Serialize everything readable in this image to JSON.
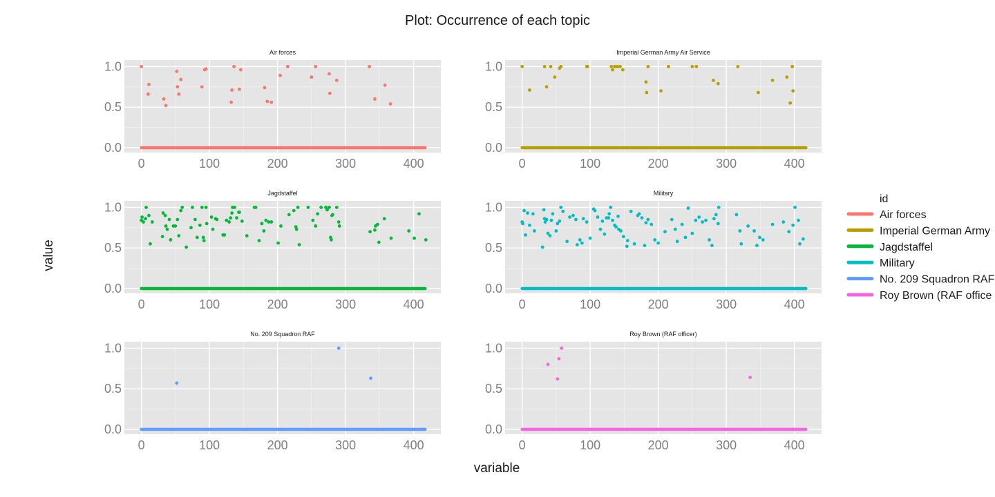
{
  "chart_data": {
    "type": "scatter",
    "title": "Plot: Occurrence of each topic",
    "xlabel": "variable",
    "ylabel": "value",
    "xlim": [
      -25,
      440
    ],
    "ylim": [
      -0.06,
      1.08
    ],
    "xticks": [
      0,
      100,
      200,
      300,
      400
    ],
    "yticks": [
      0.0,
      0.5,
      1.0
    ],
    "ytick_labels": [
      "0.0",
      "0.5",
      "1.0"
    ],
    "grid": true,
    "legend": {
      "title": "id",
      "position": "right"
    },
    "panels": [
      {
        "name": "Air forces",
        "color": "#F8766D",
        "points": [
          [
            0,
            1.0
          ],
          [
            10,
            0.66
          ],
          [
            11,
            0.78
          ],
          [
            33,
            0.6
          ],
          [
            36,
            0.52
          ],
          [
            52,
            0.94
          ],
          [
            53,
            0.75
          ],
          [
            55,
            0.66
          ],
          [
            58,
            0.84
          ],
          [
            89,
            0.75
          ],
          [
            93,
            0.96
          ],
          [
            95,
            0.97
          ],
          [
            132,
            0.56
          ],
          [
            133,
            0.71
          ],
          [
            136,
            1.0
          ],
          [
            144,
            0.72
          ],
          [
            146,
            0.96
          ],
          [
            181,
            0.74
          ],
          [
            185,
            0.57
          ],
          [
            191,
            0.56
          ],
          [
            204,
            0.89
          ],
          [
            215,
            1.0
          ],
          [
            250,
            0.87
          ],
          [
            256,
            1.0
          ],
          [
            276,
            0.91
          ],
          [
            277,
            0.67
          ],
          [
            287,
            0.83
          ],
          [
            335,
            1.0
          ],
          [
            343,
            0.6
          ],
          [
            358,
            0.77
          ],
          [
            366,
            0.54
          ]
        ]
      },
      {
        "name": "Imperial German Army Air Service",
        "color": "#B79F00",
        "points": [
          [
            0,
            1.0
          ],
          [
            11,
            0.71
          ],
          [
            33,
            1.0
          ],
          [
            36,
            0.75
          ],
          [
            42,
            1.0
          ],
          [
            48,
            0.87
          ],
          [
            55,
            0.98
          ],
          [
            57,
            1.0
          ],
          [
            95,
            1.0
          ],
          [
            96,
            1.0
          ],
          [
            131,
            1.0
          ],
          [
            133,
            0.96
          ],
          [
            136,
            1.0
          ],
          [
            140,
            1.0
          ],
          [
            144,
            1.0
          ],
          [
            148,
            0.96
          ],
          [
            182,
            0.81
          ],
          [
            183,
            0.68
          ],
          [
            185,
            1.0
          ],
          [
            204,
            0.7
          ],
          [
            215,
            1.0
          ],
          [
            250,
            1.0
          ],
          [
            256,
            1.0
          ],
          [
            281,
            0.83
          ],
          [
            288,
            0.79
          ],
          [
            317,
            1.0
          ],
          [
            347,
            0.68
          ],
          [
            368,
            0.83
          ],
          [
            389,
            0.87
          ],
          [
            394,
            0.55
          ],
          [
            397,
            1.0
          ],
          [
            398,
            0.7
          ]
        ]
      },
      {
        "name": "Jagdstaffel",
        "color": "#00BA38",
        "points": [
          [
            0,
            0.84
          ],
          [
            1,
            0.88
          ],
          [
            3,
            0.82
          ],
          [
            6,
            0.86
          ],
          [
            7,
            1.0
          ],
          [
            11,
            0.9
          ],
          [
            13,
            0.55
          ],
          [
            16,
            0.82
          ],
          [
            31,
            0.64
          ],
          [
            32,
            0.93
          ],
          [
            35,
            0.9
          ],
          [
            36,
            0.77
          ],
          [
            38,
            0.73
          ],
          [
            41,
            0.85
          ],
          [
            43,
            0.6
          ],
          [
            47,
            0.77
          ],
          [
            50,
            0.77
          ],
          [
            53,
            0.85
          ],
          [
            55,
            0.65
          ],
          [
            58,
            0.96
          ],
          [
            60,
            1.0
          ],
          [
            66,
            0.51
          ],
          [
            73,
            0.75
          ],
          [
            75,
            1.0
          ],
          [
            79,
            0.85
          ],
          [
            82,
            0.63
          ],
          [
            86,
            0.78
          ],
          [
            89,
            1.0
          ],
          [
            91,
            0.63
          ],
          [
            92,
            0.59
          ],
          [
            95,
            1.0
          ],
          [
            96,
            0.8
          ],
          [
            103,
            0.88
          ],
          [
            105,
            0.73
          ],
          [
            109,
            0.86
          ],
          [
            111,
            0.85
          ],
          [
            120,
            0.66
          ],
          [
            122,
            0.66
          ],
          [
            125,
            0.84
          ],
          [
            129,
            0.82
          ],
          [
            131,
            0.87
          ],
          [
            133,
            0.93
          ],
          [
            134,
            1.0
          ],
          [
            137,
            1.0
          ],
          [
            140,
            0.87
          ],
          [
            143,
            0.94
          ],
          [
            144,
            0.94
          ],
          [
            148,
            0.83
          ],
          [
            155,
            0.65
          ],
          [
            166,
            1.0
          ],
          [
            168,
            1.0
          ],
          [
            173,
            0.59
          ],
          [
            177,
            0.8
          ],
          [
            180,
            0.71
          ],
          [
            183,
            0.84
          ],
          [
            187,
            0.82
          ],
          [
            191,
            0.82
          ],
          [
            201,
            0.56
          ],
          [
            205,
            0.77
          ],
          [
            217,
            0.91
          ],
          [
            224,
            0.96
          ],
          [
            227,
            0.76
          ],
          [
            228,
            0.73
          ],
          [
            230,
            1.0
          ],
          [
            232,
            0.54
          ],
          [
            245,
            1.0
          ],
          [
            252,
            0.84
          ],
          [
            256,
            0.77
          ],
          [
            259,
            0.92
          ],
          [
            264,
            1.0
          ],
          [
            271,
            1.0
          ],
          [
            273,
            0.97
          ],
          [
            276,
            1.0
          ],
          [
            278,
            0.63
          ],
          [
            279,
            0.6
          ],
          [
            280,
            0.9
          ],
          [
            281,
            0.91
          ],
          [
            287,
            1.0
          ],
          [
            290,
            0.82
          ],
          [
            291,
            0.77
          ],
          [
            336,
            0.7
          ],
          [
            343,
            0.72
          ],
          [
            344,
            0.77
          ],
          [
            347,
            0.79
          ],
          [
            349,
            0.57
          ],
          [
            357,
            0.86
          ],
          [
            367,
            0.62
          ],
          [
            393,
            0.71
          ],
          [
            401,
            0.62
          ],
          [
            408,
            0.92
          ],
          [
            418,
            0.6
          ]
        ]
      },
      {
        "name": "Military",
        "color": "#00BFC4",
        "points": [
          [
            0,
            0.82
          ],
          [
            1,
            0.8
          ],
          [
            3,
            0.96
          ],
          [
            5,
            0.66
          ],
          [
            8,
            0.93
          ],
          [
            11,
            0.78
          ],
          [
            16,
            0.92
          ],
          [
            18,
            0.71
          ],
          [
            30,
            0.51
          ],
          [
            32,
            0.97
          ],
          [
            33,
            0.86
          ],
          [
            34,
            0.82
          ],
          [
            36,
            0.85
          ],
          [
            38,
            0.68
          ],
          [
            41,
            0.65
          ],
          [
            43,
            0.84
          ],
          [
            45,
            0.92
          ],
          [
            50,
            0.71
          ],
          [
            52,
            0.8
          ],
          [
            55,
            0.83
          ],
          [
            57,
            1.0
          ],
          [
            60,
            0.95
          ],
          [
            66,
            0.58
          ],
          [
            70,
            0.88
          ],
          [
            75,
            0.9
          ],
          [
            79,
            0.85
          ],
          [
            81,
            0.54
          ],
          [
            85,
            0.6
          ],
          [
            88,
            0.56
          ],
          [
            90,
            0.86
          ],
          [
            95,
            0.82
          ],
          [
            100,
            0.62
          ],
          [
            105,
            0.98
          ],
          [
            107,
            0.96
          ],
          [
            111,
            0.88
          ],
          [
            115,
            0.73
          ],
          [
            118,
            0.83
          ],
          [
            121,
            0.67
          ],
          [
            124,
            0.87
          ],
          [
            127,
            0.87
          ],
          [
            128,
            0.92
          ],
          [
            130,
            1.0
          ],
          [
            133,
            0.84
          ],
          [
            136,
            0.78
          ],
          [
            138,
            0.76
          ],
          [
            141,
            0.89
          ],
          [
            142,
            0.73
          ],
          [
            145,
            0.71
          ],
          [
            149,
            0.64
          ],
          [
            154,
            0.52
          ],
          [
            155,
            0.59
          ],
          [
            160,
            0.95
          ],
          [
            165,
            0.55
          ],
          [
            170,
            0.9
          ],
          [
            172,
            0.92
          ],
          [
            176,
            0.87
          ],
          [
            180,
            0.53
          ],
          [
            182,
            0.81
          ],
          [
            185,
            0.85
          ],
          [
            190,
            0.79
          ],
          [
            195,
            0.6
          ],
          [
            200,
            0.56
          ],
          [
            210,
            0.7
          ],
          [
            220,
            0.85
          ],
          [
            225,
            0.73
          ],
          [
            228,
            0.58
          ],
          [
            235,
            0.79
          ],
          [
            240,
            0.63
          ],
          [
            244,
            0.99
          ],
          [
            250,
            0.68
          ],
          [
            255,
            0.84
          ],
          [
            260,
            0.88
          ],
          [
            265,
            0.82
          ],
          [
            270,
            0.84
          ],
          [
            275,
            0.6
          ],
          [
            279,
            0.53
          ],
          [
            282,
            0.86
          ],
          [
            285,
            0.91
          ],
          [
            288,
            0.8
          ],
          [
            289,
            1.0
          ],
          [
            315,
            0.91
          ],
          [
            320,
            0.71
          ],
          [
            322,
            0.55
          ],
          [
            332,
            0.77
          ],
          [
            341,
            0.71
          ],
          [
            345,
            0.53
          ],
          [
            349,
            0.63
          ],
          [
            354,
            0.6
          ],
          [
            368,
            0.79
          ],
          [
            384,
            0.82
          ],
          [
            392,
            0.7
          ],
          [
            398,
            0.78
          ],
          [
            401,
            1.0
          ],
          [
            406,
            0.84
          ],
          [
            408,
            0.55
          ],
          [
            413,
            0.61
          ]
        ]
      },
      {
        "name": "No. 209 Squadron RAF",
        "color": "#619CFF",
        "points": [
          [
            52,
            0.57
          ],
          [
            290,
            1.0
          ],
          [
            337,
            0.63
          ]
        ]
      },
      {
        "name": "Roy Brown (RAF officer)",
        "color": "#F564E3",
        "points": [
          [
            38,
            0.8
          ],
          [
            52,
            0.62
          ],
          [
            54,
            0.87
          ],
          [
            58,
            1.0
          ],
          [
            335,
            0.64
          ]
        ]
      }
    ],
    "zero_baseline": {
      "x_range": [
        0,
        417
      ],
      "value": 0.0,
      "gaps": [
        {
          "panel": "Jagdstaffel",
          "x_ranges": [
            [
              7,
              8
            ],
            [
              33,
              34
            ],
            [
              133,
              134
            ],
            [
              281,
              282
            ]
          ]
        },
        {
          "panel": "Military",
          "x_ranges": [
            [
              32,
              33
            ],
            [
              41,
              42
            ],
            [
              90,
              91
            ],
            [
              128,
              129
            ],
            [
              133,
              134
            ]
          ]
        }
      ]
    }
  },
  "legend_items": [
    {
      "label": "Air forces",
      "color": "#F8766D"
    },
    {
      "label": "Imperial German Army",
      "color": "#B79F00"
    },
    {
      "label": "Jagdstaffel",
      "color": "#00BA38"
    },
    {
      "label": "Military",
      "color": "#00BFC4"
    },
    {
      "label": "No. 209 Squadron RAF",
      "color": "#619CFF"
    },
    {
      "label": "Roy Brown (RAF office",
      "color": "#F564E3"
    }
  ]
}
